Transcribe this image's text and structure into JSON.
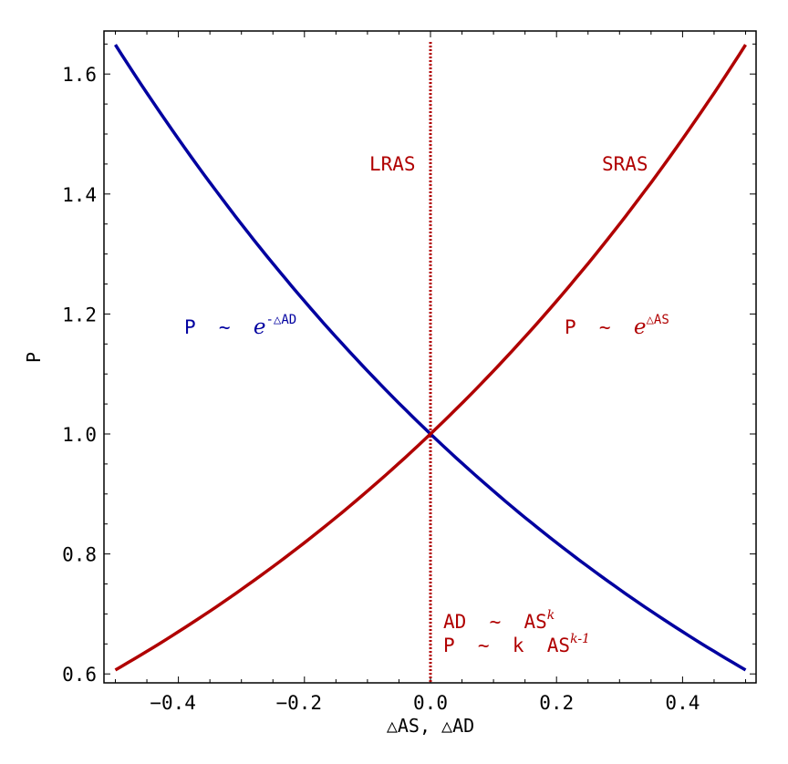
{
  "chart_data": {
    "type": "line",
    "title": "",
    "xlabel": "△AS, △AD",
    "ylabel": "P",
    "xlim": [
      -0.52,
      0.52
    ],
    "ylim": [
      0.58,
      1.67
    ],
    "x_ticks": [
      "-0.4",
      "-0.2",
      "0.0",
      "0.2",
      "0.4"
    ],
    "y_ticks": [
      "0.6",
      "0.8",
      "1.0",
      "1.2",
      "1.4",
      "1.6"
    ],
    "grid": false,
    "legend": null,
    "series": [
      {
        "name": "SRAS",
        "color": "#b00000",
        "formula": "P = e^(ΔAS)",
        "x": [
          -0.5,
          -0.4,
          -0.3,
          -0.2,
          -0.1,
          0.0,
          0.1,
          0.2,
          0.3,
          0.4,
          0.5
        ],
        "y": [
          0.607,
          0.67,
          0.741,
          0.819,
          0.905,
          1.0,
          1.105,
          1.221,
          1.35,
          1.492,
          1.649
        ]
      },
      {
        "name": "AD",
        "color": "#0000a0",
        "formula": "P = e^(-ΔAD)",
        "x": [
          -0.5,
          -0.4,
          -0.3,
          -0.2,
          -0.1,
          0.0,
          0.1,
          0.2,
          0.3,
          0.4,
          0.5
        ],
        "y": [
          1.649,
          1.492,
          1.35,
          1.221,
          1.105,
          1.0,
          0.905,
          0.819,
          0.741,
          0.67,
          0.607
        ]
      },
      {
        "name": "LRAS",
        "color": "#b00000",
        "style": "dotted",
        "x": [
          0.0,
          0.0
        ],
        "y": [
          0.58,
          1.67
        ]
      }
    ],
    "annotations": [
      {
        "text": "LRAS",
        "x": -0.09,
        "y": 1.45,
        "color": "#b00000"
      },
      {
        "text": "SRAS",
        "x": 0.27,
        "y": 1.45,
        "color": "#b00000"
      },
      {
        "text": "P ~ e^(-ΔAD)",
        "x": -0.34,
        "y": 1.17,
        "color": "#0000a0"
      },
      {
        "text": "P ~ e^(ΔAS)",
        "x": 0.29,
        "y": 1.17,
        "color": "#b00000"
      },
      {
        "text": "AD ~ AS^k",
        "x": 0.09,
        "y": 0.69,
        "color": "#b00000"
      },
      {
        "text": "P ~ k AS^(k-1)",
        "x": 0.12,
        "y": 0.65,
        "color": "#b00000"
      }
    ]
  },
  "labels": {
    "xlabel": "△AS, △AD",
    "ylabel": "P",
    "x_ticks": [
      "-0.4",
      "-0.2",
      "0.0",
      "0.2",
      "0.4"
    ],
    "y_ticks": [
      "0.6",
      "0.8",
      "1.0",
      "1.2",
      "1.4",
      "1.6"
    ],
    "lras": "LRAS",
    "sras": "SRAS",
    "ad_formula_base": "P  ~  ",
    "ad_formula_e": "e",
    "ad_formula_exp": "-△AD",
    "as_formula_base": "P  ~  ",
    "as_formula_e": "e",
    "as_formula_exp": "△AS",
    "note1_base": "AD  ~  AS",
    "note1_exp": "k",
    "note2_base": "P  ~  k  AS",
    "note2_exp": "k-1"
  },
  "colors": {
    "sras": "#b00000",
    "ad": "#0000a0",
    "frame": "#000000"
  }
}
